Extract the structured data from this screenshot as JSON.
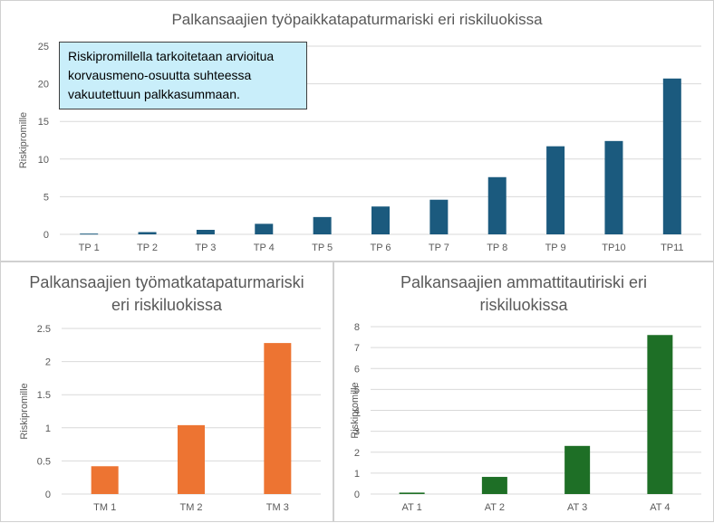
{
  "note": {
    "text": "Riskipromillella tarkoitetaan arvioitua korvausmeno-osuutta suhteessa vakuutettuun palkkasummaan."
  },
  "colors": {
    "tp": "#1b5a7e",
    "tm": "#ed7432",
    "at": "#1e6f26",
    "grid": "#d9d9d9",
    "text": "#595959"
  },
  "chart_data": [
    {
      "id": "tp",
      "type": "bar",
      "title": "Palkansaajien työpaikkatapaturmariski eri riskiluokissa",
      "ylabel": "Riskipromille",
      "xlabel": "",
      "categories": [
        "TP 1",
        "TP 2",
        "TP 3",
        "TP 4",
        "TP 5",
        "TP 6",
        "TP 7",
        "TP 8",
        "TP 9",
        "TP10",
        "TP11"
      ],
      "values": [
        0.1,
        0.3,
        0.6,
        1.4,
        2.3,
        3.7,
        4.6,
        7.6,
        11.7,
        12.4,
        20.7
      ],
      "ylim": [
        0,
        25
      ],
      "yticks": [
        "0",
        "5",
        "10",
        "15",
        "20",
        "25"
      ],
      "grid": true,
      "legend": "none"
    },
    {
      "id": "tm",
      "type": "bar",
      "title": "Palkansaajien työmatkatapaturmariski eri riskiluokissa",
      "ylabel": "Riskipromille",
      "xlabel": "",
      "categories": [
        "TM 1",
        "TM 2",
        "TM 3"
      ],
      "values": [
        0.42,
        1.04,
        2.28
      ],
      "ylim": [
        0,
        2.5
      ],
      "yticks": [
        "0",
        "0.5",
        "1",
        "1.5",
        "2",
        "2.5"
      ],
      "grid": true,
      "legend": "none"
    },
    {
      "id": "at",
      "type": "bar",
      "title": "Palkansaajien ammattitautiriski eri riskiluokissa",
      "ylabel": "Riskipromille",
      "xlabel": "",
      "categories": [
        "AT 1",
        "AT 2",
        "AT 3",
        "AT 4"
      ],
      "values": [
        0.07,
        0.82,
        2.3,
        7.6
      ],
      "ylim": [
        0,
        8
      ],
      "yticks": [
        "0",
        "1",
        "2",
        "3",
        "4",
        "5",
        "6",
        "7",
        "8"
      ],
      "grid": true,
      "legend": "none"
    }
  ]
}
